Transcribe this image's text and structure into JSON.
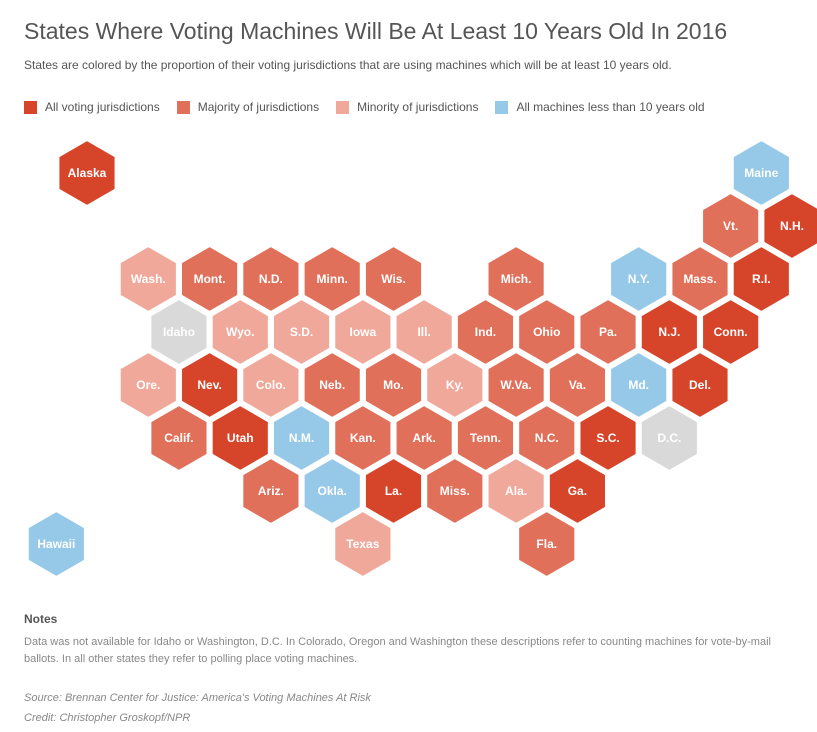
{
  "header": {
    "title": "States Where Voting Machines Will Be At Least 10 Years Old In 2016",
    "subtitle": "States are colored by the proportion of their voting jurisdictions that are using machines which will be at least 10 years old."
  },
  "colors": {
    "all": "#d6452a",
    "majority": "#e0705a",
    "minority": "#f0a89a",
    "none": "#96c8e8",
    "na": "#d9d9d9"
  },
  "legend": [
    {
      "key": "all",
      "label": "All voting jurisdictions"
    },
    {
      "key": "majority",
      "label": "Majority of jurisdictions"
    },
    {
      "key": "minority",
      "label": "Minority of jurisdictions"
    },
    {
      "key": "none",
      "label": "All machines less than 10 years old"
    }
  ],
  "states": [
    {
      "label": "Alaska",
      "category": "all"
    },
    {
      "label": "Maine",
      "category": "none"
    },
    {
      "label": "Vt.",
      "category": "majority"
    },
    {
      "label": "N.H.",
      "category": "all"
    },
    {
      "label": "Wash.",
      "category": "minority"
    },
    {
      "label": "Mont.",
      "category": "majority"
    },
    {
      "label": "N.D.",
      "category": "majority"
    },
    {
      "label": "Minn.",
      "category": "majority"
    },
    {
      "label": "Wis.",
      "category": "majority"
    },
    {
      "label": "Mich.",
      "category": "majority"
    },
    {
      "label": "N.Y.",
      "category": "none"
    },
    {
      "label": "Mass.",
      "category": "majority"
    },
    {
      "label": "R.I.",
      "category": "all"
    },
    {
      "label": "Idaho",
      "category": "na"
    },
    {
      "label": "Wyo.",
      "category": "minority"
    },
    {
      "label": "S.D.",
      "category": "minority"
    },
    {
      "label": "Iowa",
      "category": "minority"
    },
    {
      "label": "Ill.",
      "category": "minority"
    },
    {
      "label": "Ind.",
      "category": "majority"
    },
    {
      "label": "Ohio",
      "category": "majority"
    },
    {
      "label": "Pa.",
      "category": "majority"
    },
    {
      "label": "N.J.",
      "category": "all"
    },
    {
      "label": "Conn.",
      "category": "all"
    },
    {
      "label": "Ore.",
      "category": "minority"
    },
    {
      "label": "Nev.",
      "category": "all"
    },
    {
      "label": "Colo.",
      "category": "minority"
    },
    {
      "label": "Neb.",
      "category": "majority"
    },
    {
      "label": "Mo.",
      "category": "majority"
    },
    {
      "label": "Ky.",
      "category": "minority"
    },
    {
      "label": "W.Va.",
      "category": "majority"
    },
    {
      "label": "Va.",
      "category": "majority"
    },
    {
      "label": "Md.",
      "category": "none"
    },
    {
      "label": "Del.",
      "category": "all"
    },
    {
      "label": "Calif.",
      "category": "majority"
    },
    {
      "label": "Utah",
      "category": "all"
    },
    {
      "label": "N.M.",
      "category": "none"
    },
    {
      "label": "Kan.",
      "category": "majority"
    },
    {
      "label": "Ark.",
      "category": "majority"
    },
    {
      "label": "Tenn.",
      "category": "majority"
    },
    {
      "label": "N.C.",
      "category": "majority"
    },
    {
      "label": "S.C.",
      "category": "all"
    },
    {
      "label": "D.C.",
      "category": "na"
    },
    {
      "label": "Ariz.",
      "category": "majority"
    },
    {
      "label": "Okla.",
      "category": "none"
    },
    {
      "label": "La.",
      "category": "all"
    },
    {
      "label": "Miss.",
      "category": "majority"
    },
    {
      "label": "Ala.",
      "category": "minority"
    },
    {
      "label": "Ga.",
      "category": "all"
    },
    {
      "label": "Hawaii",
      "category": "none"
    },
    {
      "label": "Texas",
      "category": "minority"
    },
    {
      "label": "Fla.",
      "category": "majority"
    }
  ],
  "notes": {
    "heading": "Notes",
    "text": "Data was not available for Idaho or Washington, D.C. In Colorado, Oregon and Washington these descriptions refer to counting machines for vote-by-mail ballots. In all other states they refer to polling place voting machines."
  },
  "source": "Source: Brennan Center for Justice: America's Voting Machines At Risk",
  "credit": "Credit: Christopher Groskopf/NPR"
}
